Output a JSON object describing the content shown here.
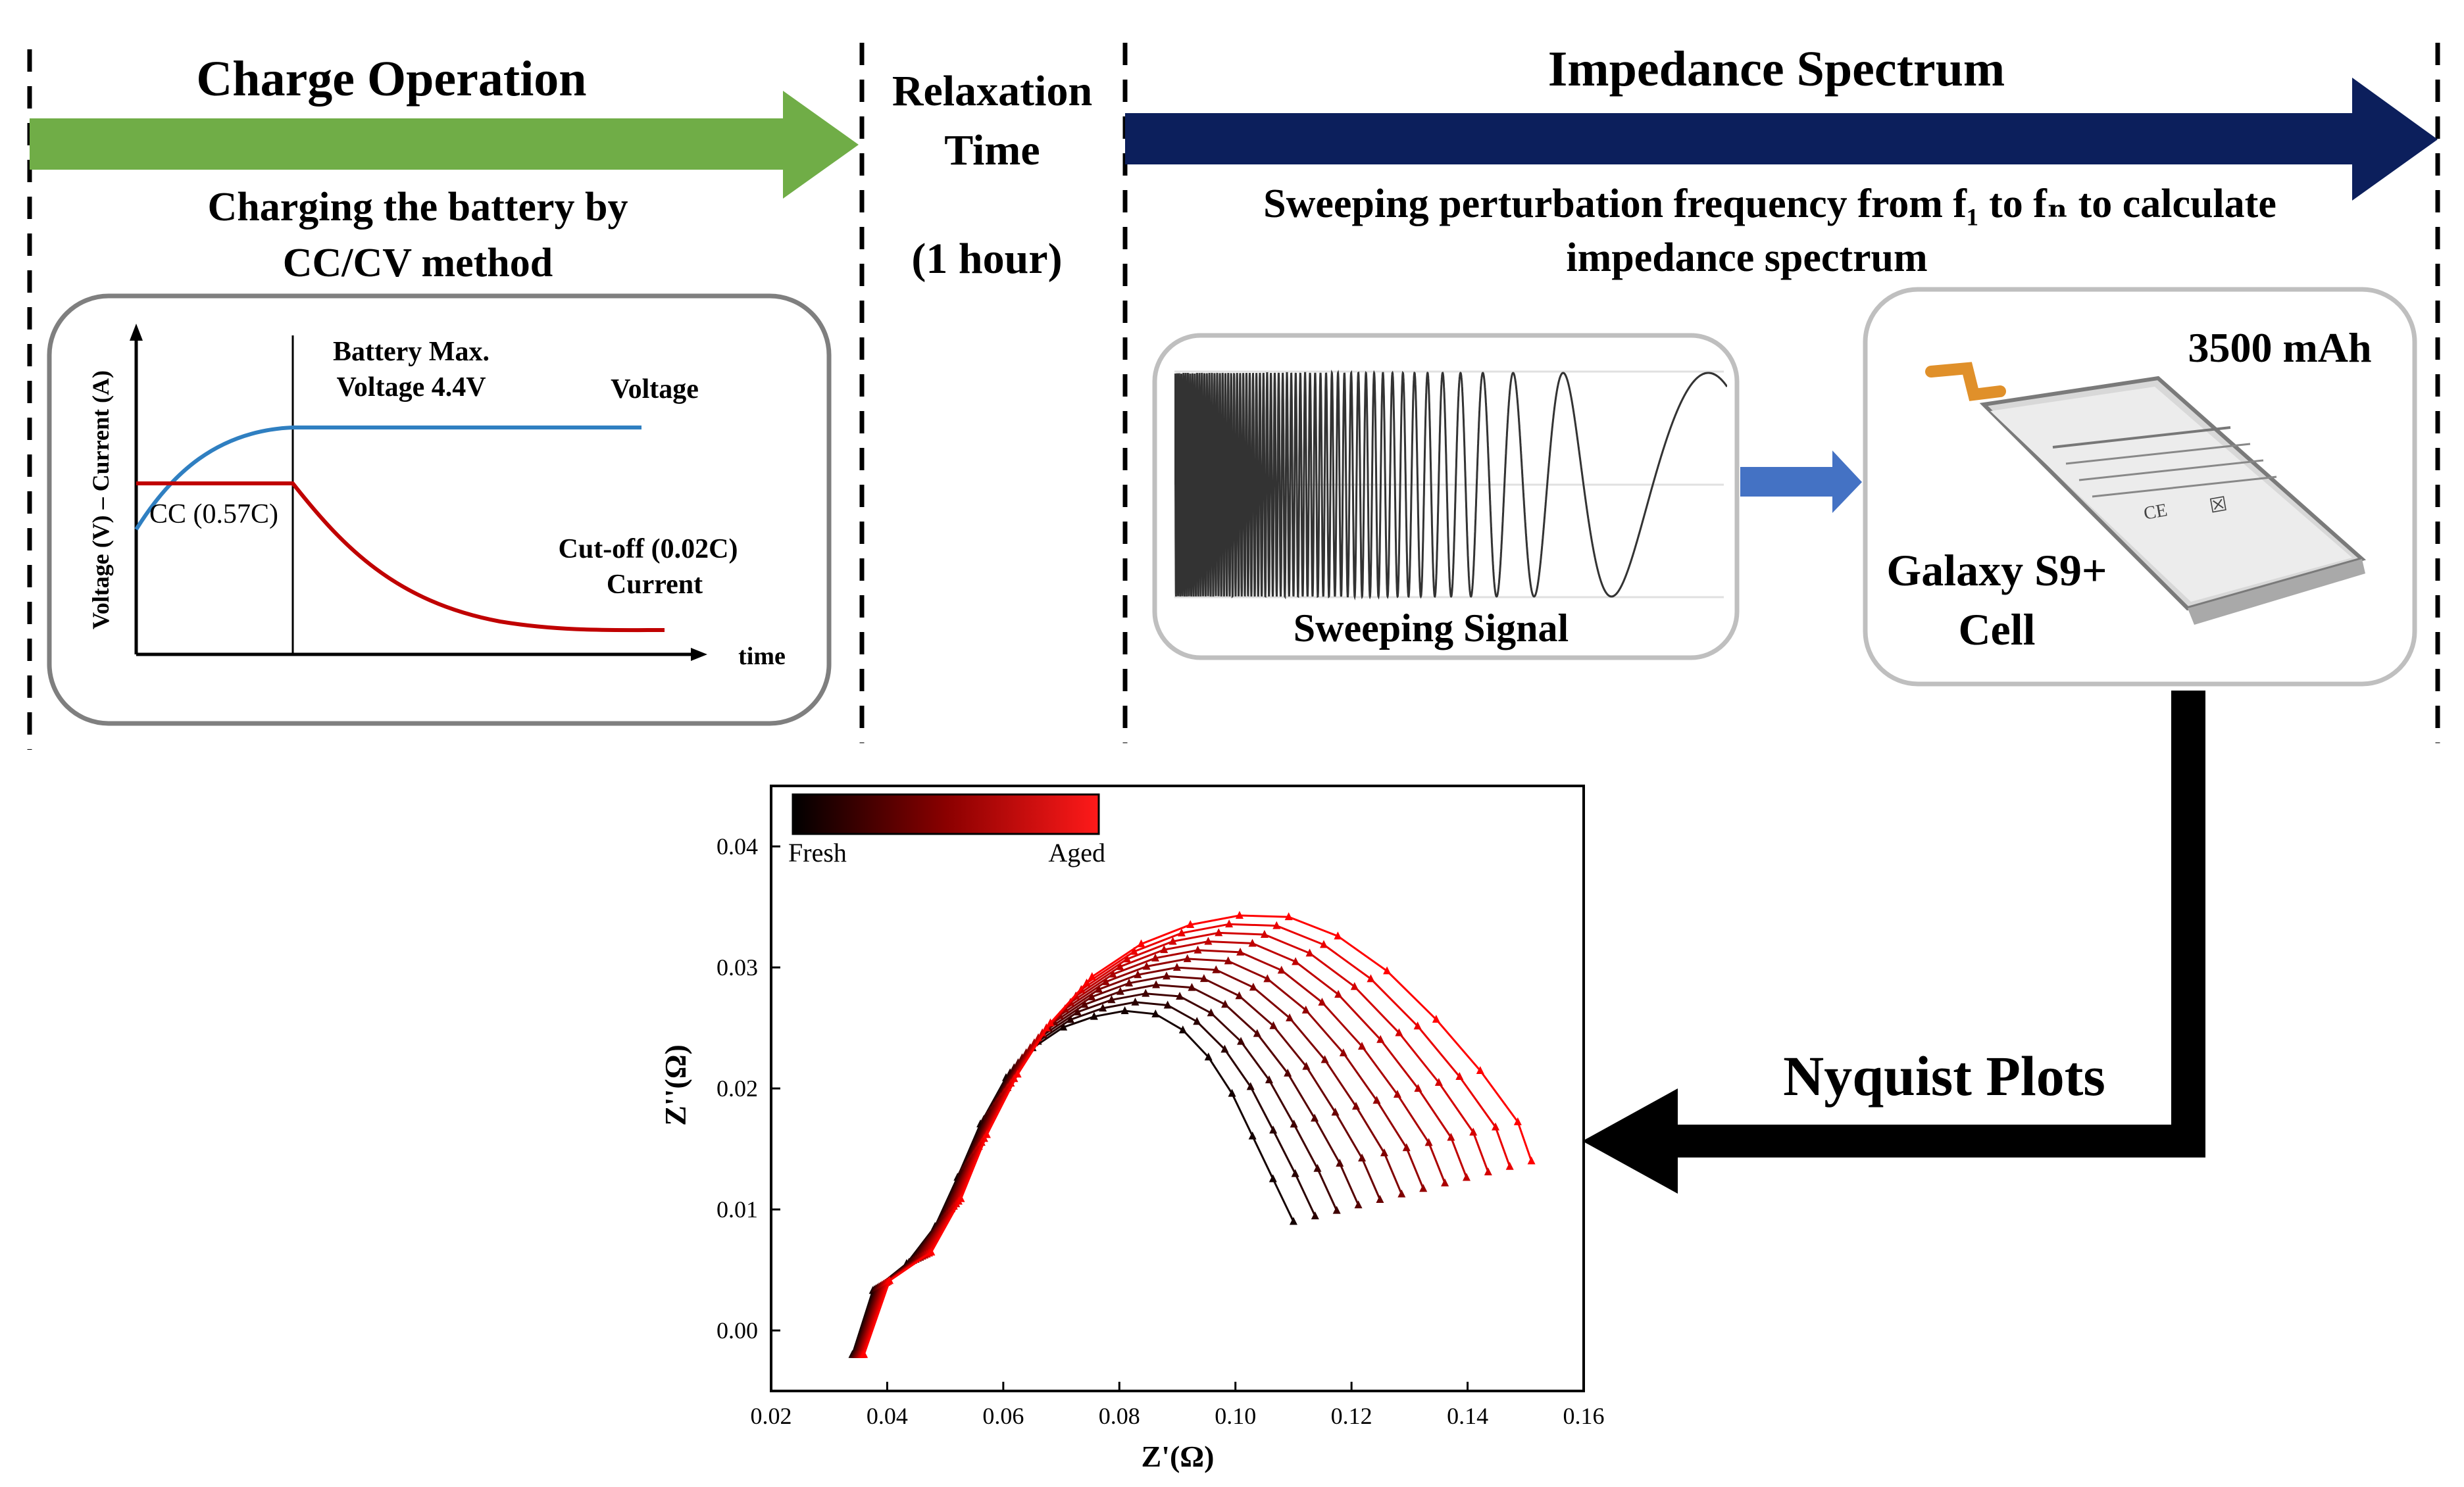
{
  "sections": {
    "charge": {
      "title": "Charge Operation",
      "desc_line1": "Charging the battery by",
      "desc_line2": "CC/CV method"
    },
    "relaxation": {
      "title_line1": "Relaxation",
      "title_line2": "Time",
      "duration": "(1 hour)"
    },
    "impedance": {
      "title": "Impedance Spectrum",
      "desc_line1": "Sweeping perturbation frequency from f₁ to fₙ to calculate",
      "desc_line2": "impedance spectrum"
    }
  },
  "cccv_chart": {
    "y_label": "Voltage (V) – Current (A)",
    "x_label": "time",
    "max_voltage_line1": "Battery Max.",
    "max_voltage_line2": "Voltage 4.4V",
    "voltage_label": "Voltage",
    "cc_label": "CC (0.57C)",
    "cutoff_line1": "Cut-off (0.02C)",
    "cutoff_line2": "Current",
    "colors": {
      "voltage": "#2f7fc1",
      "current": "#c00000"
    }
  },
  "sweep": {
    "label": "Sweeping Signal"
  },
  "battery": {
    "capacity": "3500 mAh",
    "name_line1": "Galaxy S9+",
    "name_line2": "Cell"
  },
  "nyquist_label": "Nyquist Plots",
  "colors": {
    "charge_arrow": "#70ad47",
    "impedance_arrow": "#0c1f5c",
    "process_arrow": "#4472c4"
  },
  "chart_data": {
    "type": "line",
    "xlabel": "Z'(Ω)",
    "ylabel": "Z''(Ω)",
    "xlim": [
      0.02,
      0.16
    ],
    "ylim": [
      -0.005,
      0.045
    ],
    "xticks": [
      "0.02",
      "0.04",
      "0.06",
      "0.08",
      "0.10",
      "0.12",
      "0.14",
      "0.16"
    ],
    "yticks": [
      "0.00",
      "0.01",
      "0.02",
      "0.03",
      "0.04"
    ],
    "colorbar": {
      "low": "Fresh",
      "high": "Aged",
      "low_color": "#000000",
      "high_color": "#ff0000"
    },
    "series_count": 12,
    "fresh": {
      "x": [
        0.034,
        0.038,
        0.045,
        0.05,
        0.054,
        0.059,
        0.064,
        0.07,
        0.076,
        0.082,
        0.088,
        0.093,
        0.098,
        0.102,
        0.106,
        0.11
      ],
      "y": [
        -0.002,
        0.004,
        0.006,
        0.01,
        0.015,
        0.02,
        0.023,
        0.025,
        0.026,
        0.0265,
        0.026,
        0.024,
        0.021,
        0.017,
        0.013,
        0.009
      ]
    },
    "aged": {
      "x": [
        0.036,
        0.04,
        0.047,
        0.052,
        0.056,
        0.061,
        0.066,
        0.072,
        0.08,
        0.088,
        0.096,
        0.104,
        0.112,
        0.12,
        0.128,
        0.136,
        0.143,
        0.149,
        0.151
      ],
      "y": [
        -0.002,
        0.004,
        0.006,
        0.01,
        0.015,
        0.02,
        0.024,
        0.028,
        0.031,
        0.033,
        0.034,
        0.0345,
        0.034,
        0.032,
        0.029,
        0.025,
        0.021,
        0.017,
        0.014
      ]
    }
  }
}
